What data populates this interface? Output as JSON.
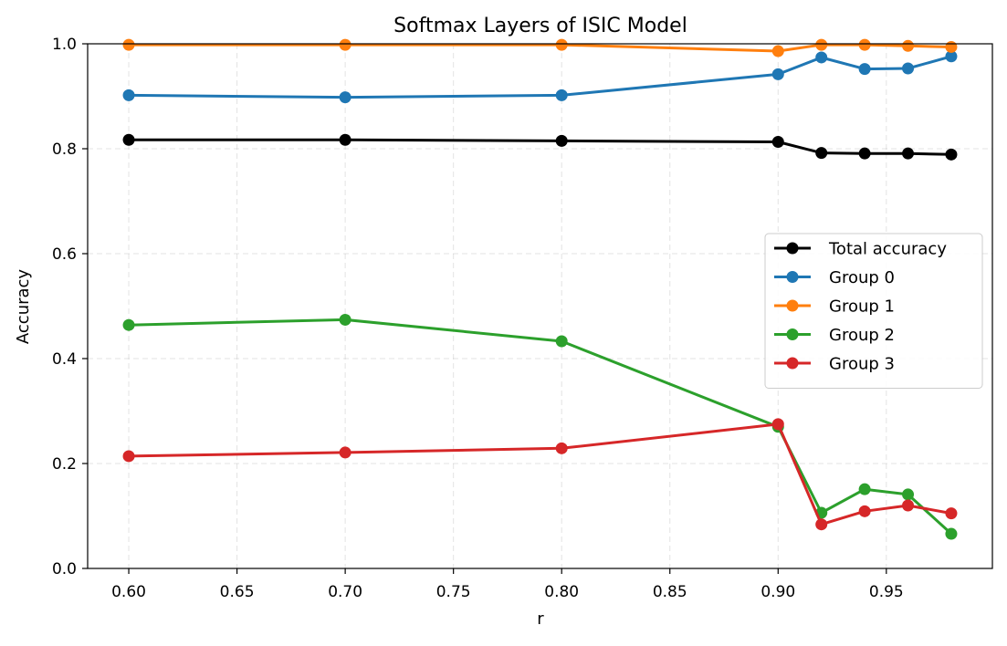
{
  "chart_data": {
    "type": "line",
    "title": "Softmax Layers of ISIC Model",
    "xlabel": "r",
    "ylabel": "Accuracy",
    "x": [
      0.6,
      0.7,
      0.8,
      0.9,
      0.92,
      0.94,
      0.96,
      0.98
    ],
    "xlim": [
      0.581,
      0.999
    ],
    "ylim": [
      0.0,
      1.0
    ],
    "xticks": [
      0.6,
      0.65,
      0.7,
      0.75,
      0.8,
      0.85,
      0.9,
      0.95
    ],
    "xtick_labels": [
      "0.60",
      "0.65",
      "0.70",
      "0.75",
      "0.80",
      "0.85",
      "0.90",
      "0.95"
    ],
    "yticks": [
      0.0,
      0.2,
      0.4,
      0.6,
      0.8,
      1.0
    ],
    "ytick_labels": [
      "0.0",
      "0.2",
      "0.4",
      "0.6",
      "0.8",
      "1.0"
    ],
    "grid": true,
    "legend_position": "center-right",
    "series": [
      {
        "name": "Total accuracy",
        "color": "#000000",
        "values": [
          0.817,
          0.817,
          0.815,
          0.813,
          0.792,
          0.791,
          0.791,
          0.789
        ]
      },
      {
        "name": "Group 0",
        "color": "#1f77b4",
        "values": [
          0.902,
          0.898,
          0.902,
          0.942,
          0.974,
          0.952,
          0.953,
          0.976
        ]
      },
      {
        "name": "Group 1",
        "color": "#ff7f0e",
        "values": [
          0.998,
          0.998,
          0.998,
          0.986,
          0.998,
          0.998,
          0.996,
          0.994
        ]
      },
      {
        "name": "Group 2",
        "color": "#2ca02c",
        "values": [
          0.464,
          0.474,
          0.433,
          0.27,
          0.106,
          0.151,
          0.141,
          0.066
        ]
      },
      {
        "name": "Group 3",
        "color": "#d62728",
        "values": [
          0.214,
          0.221,
          0.229,
          0.275,
          0.084,
          0.109,
          0.12,
          0.105
        ]
      }
    ]
  }
}
